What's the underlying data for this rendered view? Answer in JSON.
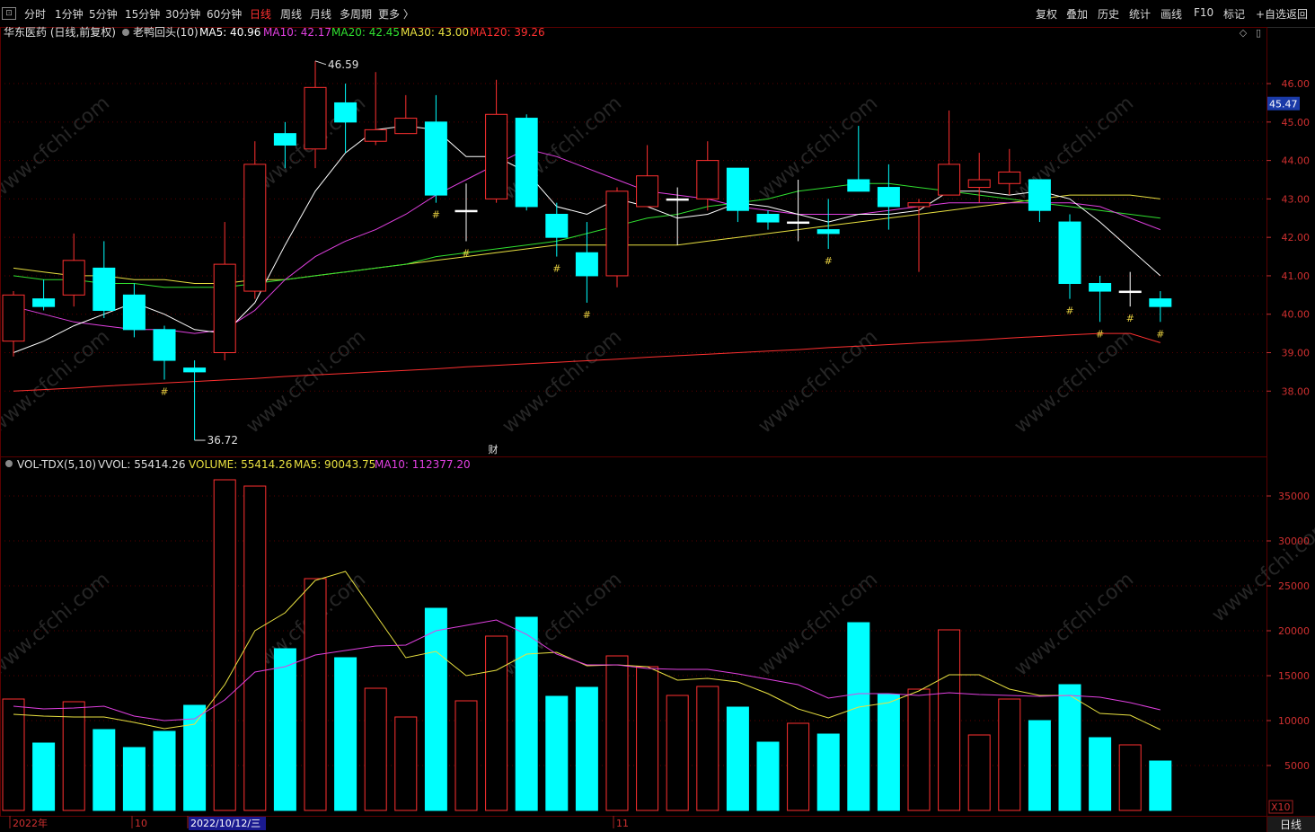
{
  "toolbar": {
    "left": [
      "分时",
      "1分钟",
      "5分钟",
      "15分钟",
      "30分钟",
      "60分钟",
      "日线",
      "周线",
      "月线",
      "多周期",
      "更多 〉"
    ],
    "active": "日线",
    "right": [
      "复权",
      "叠加",
      "历史",
      "统计",
      "画线",
      "F10",
      "标记",
      "+自选",
      "返回"
    ]
  },
  "price_header": {
    "stock": "华东医药 (日线,前复权)",
    "indicator": "老鸭回头(10)",
    "ma": [
      {
        "label": "MA5: 40.96",
        "color": "#ffffff"
      },
      {
        "label": "MA10: 42.17",
        "color": "#e040e0"
      },
      {
        "label": "MA20: 42.45",
        "color": "#30e030"
      },
      {
        "label": "MA30: 43.00",
        "color": "#e8e040"
      },
      {
        "label": "MA120: 39.26",
        "color": "#ff3030"
      }
    ]
  },
  "volume_header": {
    "indicator": "VOL-TDX(5,10)",
    "vvol": "VVOL: 55414.26",
    "volume": {
      "label": "VOLUME: 55414.26",
      "color": "#e8e040"
    },
    "ma5": {
      "label": "MA5: 90043.75",
      "color": "#e8e040"
    },
    "ma10": {
      "label": "MA10: 112377.20",
      "color": "#e040e0"
    }
  },
  "annotations": {
    "high": "46.59",
    "low": "36.72",
    "marker": "#",
    "finance_mark": "财"
  },
  "current_price": "45.47",
  "axis_note": "X10",
  "bottom_axis": [
    "2022年",
    "10",
    "2022/10/12/三",
    "11"
  ],
  "period_label": "日线",
  "watermark": "www.cfchi.com",
  "colors": {
    "up": "#ff3030",
    "down": "#00ffff",
    "grid": "#5a0000",
    "background": "#000000"
  },
  "chart_data": [
    {
      "type": "candlestick",
      "price_ticks": [
        38,
        39,
        40,
        41,
        42,
        43,
        44,
        45,
        46
      ],
      "ylim": [
        36.3,
        47.1
      ],
      "candles": [
        {
          "o": 39.3,
          "c": 40.5,
          "h": 40.6,
          "l": 38.9,
          "v": 12400
        },
        {
          "o": 40.4,
          "c": 40.2,
          "h": 40.9,
          "l": 40.1,
          "v": 7500
        },
        {
          "o": 40.5,
          "c": 41.4,
          "h": 42.1,
          "l": 40.2,
          "v": 12100
        },
        {
          "o": 41.2,
          "c": 40.1,
          "h": 41.9,
          "l": 39.9,
          "v": 9000
        },
        {
          "o": 40.5,
          "c": 39.6,
          "h": 40.8,
          "l": 39.4,
          "v": 7000
        },
        {
          "o": 39.6,
          "c": 38.8,
          "h": 39.7,
          "l": 38.3,
          "v": 8800
        },
        {
          "o": 38.6,
          "c": 38.5,
          "h": 38.8,
          "l": 36.72,
          "v": 11700
        },
        {
          "o": 39.0,
          "c": 41.3,
          "h": 42.4,
          "l": 38.8,
          "v": 36800
        },
        {
          "o": 40.6,
          "c": 43.9,
          "h": 44.5,
          "l": 40.4,
          "v": 36100
        },
        {
          "o": 44.7,
          "c": 44.4,
          "h": 45.0,
          "l": 43.8,
          "v": 18000
        },
        {
          "o": 44.3,
          "c": 45.9,
          "h": 46.59,
          "l": 43.8,
          "v": 25800
        },
        {
          "o": 45.5,
          "c": 45.0,
          "h": 46.0,
          "l": 44.2,
          "v": 17000
        },
        {
          "o": 44.5,
          "c": 44.8,
          "h": 46.3,
          "l": 44.4,
          "v": 13600
        },
        {
          "o": 44.7,
          "c": 45.1,
          "h": 45.7,
          "l": 44.7,
          "v": 10400
        },
        {
          "o": 45.0,
          "c": 43.1,
          "h": 45.7,
          "l": 42.9,
          "v": 22500
        },
        {
          "o": 42.7,
          "c": 42.7,
          "h": 43.4,
          "l": 41.9,
          "v": 12200
        },
        {
          "o": 43.0,
          "c": 45.2,
          "h": 46.1,
          "l": 42.9,
          "v": 19400
        },
        {
          "o": 45.1,
          "c": 42.8,
          "h": 45.2,
          "l": 42.7,
          "v": 21500
        },
        {
          "o": 42.6,
          "c": 42.0,
          "h": 42.9,
          "l": 41.5,
          "v": 12700
        },
        {
          "o": 41.6,
          "c": 41.0,
          "h": 42.4,
          "l": 40.3,
          "v": 13700
        },
        {
          "o": 41.0,
          "c": 43.2,
          "h": 43.3,
          "l": 40.7,
          "v": 17200
        },
        {
          "o": 42.8,
          "c": 43.6,
          "h": 44.4,
          "l": 42.8,
          "v": 16000
        },
        {
          "o": 43.0,
          "c": 43.0,
          "h": 43.3,
          "l": 41.8,
          "v": 12800
        },
        {
          "o": 43.0,
          "c": 44.0,
          "h": 44.5,
          "l": 42.7,
          "v": 13800
        },
        {
          "o": 43.8,
          "c": 42.7,
          "h": 43.8,
          "l": 42.4,
          "v": 11500
        },
        {
          "o": 42.6,
          "c": 42.4,
          "h": 42.7,
          "l": 42.2,
          "v": 7600
        },
        {
          "o": 42.4,
          "c": 42.4,
          "h": 43.5,
          "l": 41.9,
          "v": 9700
        },
        {
          "o": 42.2,
          "c": 42.1,
          "h": 43.0,
          "l": 41.7,
          "v": 8500
        },
        {
          "o": 43.5,
          "c": 43.2,
          "h": 44.9,
          "l": 43.2,
          "v": 20900
        },
        {
          "o": 43.3,
          "c": 42.8,
          "h": 43.9,
          "l": 42.2,
          "v": 12900
        },
        {
          "o": 42.8,
          "c": 42.9,
          "h": 43.0,
          "l": 41.1,
          "v": 13500
        },
        {
          "o": 43.1,
          "c": 43.9,
          "h": 45.3,
          "l": 43.1,
          "v": 20100
        },
        {
          "o": 43.3,
          "c": 43.5,
          "h": 44.2,
          "l": 42.9,
          "v": 8400
        },
        {
          "o": 43.4,
          "c": 43.7,
          "h": 44.3,
          "l": 43.1,
          "v": 12400
        },
        {
          "o": 43.5,
          "c": 42.7,
          "h": 43.5,
          "l": 42.4,
          "v": 10000
        },
        {
          "o": 42.4,
          "c": 40.8,
          "h": 42.6,
          "l": 40.4,
          "v": 14000
        },
        {
          "o": 40.8,
          "c": 40.6,
          "h": 41.0,
          "l": 39.8,
          "v": 8100
        },
        {
          "o": 40.6,
          "c": 40.6,
          "h": 41.1,
          "l": 40.2,
          "v": 7300
        },
        {
          "o": 40.4,
          "c": 40.2,
          "h": 40.6,
          "l": 39.8,
          "v": 5500
        }
      ],
      "marker_bars": [
        5,
        14,
        15,
        18,
        19,
        27,
        35,
        36,
        37,
        38
      ],
      "ma5": [
        39.0,
        39.3,
        39.7,
        40.0,
        40.3,
        40.0,
        39.6,
        39.5,
        40.3,
        41.8,
        43.2,
        44.2,
        44.8,
        44.9,
        44.8,
        44.1,
        44.1,
        43.7,
        42.8,
        42.6,
        43.0,
        42.8,
        42.5,
        42.6,
        42.9,
        42.8,
        42.6,
        42.4,
        42.6,
        42.6,
        42.7,
        43.2,
        43.2,
        43.1,
        43.2,
        43.0,
        42.4,
        41.7,
        41.0
      ],
      "ma10": [
        40.2,
        40.0,
        39.8,
        39.7,
        39.6,
        39.6,
        39.5,
        39.6,
        40.1,
        40.9,
        41.5,
        41.9,
        42.2,
        42.6,
        43.1,
        43.5,
        43.9,
        44.3,
        44.1,
        43.8,
        43.5,
        43.2,
        43.1,
        43.0,
        42.8,
        42.7,
        42.6,
        42.6,
        42.6,
        42.7,
        42.8,
        42.9,
        42.9,
        42.9,
        42.9,
        42.9,
        42.8,
        42.5,
        42.2
      ],
      "ma20": [
        41.0,
        40.9,
        40.9,
        40.8,
        40.8,
        40.7,
        40.7,
        40.7,
        40.8,
        40.9,
        41.0,
        41.1,
        41.2,
        41.3,
        41.5,
        41.6,
        41.7,
        41.8,
        41.9,
        42.1,
        42.3,
        42.5,
        42.6,
        42.8,
        42.9,
        43.0,
        43.2,
        43.3,
        43.4,
        43.4,
        43.3,
        43.2,
        43.1,
        43.0,
        42.9,
        42.8,
        42.7,
        42.6,
        42.5
      ],
      "ma30": [
        41.2,
        41.1,
        41.0,
        41.0,
        40.9,
        40.9,
        40.8,
        40.8,
        40.9,
        40.9,
        41.0,
        41.1,
        41.2,
        41.3,
        41.4,
        41.5,
        41.6,
        41.7,
        41.8,
        41.8,
        41.8,
        41.8,
        41.8,
        41.9,
        42.0,
        42.1,
        42.2,
        42.3,
        42.4,
        42.5,
        42.6,
        42.7,
        42.8,
        42.9,
        43.0,
        43.1,
        43.1,
        43.1,
        43.0
      ],
      "ma120": [
        38.0,
        38.04,
        38.08,
        38.13,
        38.17,
        38.21,
        38.25,
        38.29,
        38.33,
        38.38,
        38.42,
        38.46,
        38.5,
        38.54,
        38.58,
        38.63,
        38.67,
        38.71,
        38.75,
        38.79,
        38.83,
        38.88,
        38.92,
        38.96,
        39.0,
        39.04,
        39.08,
        39.13,
        39.17,
        39.21,
        39.25,
        39.29,
        39.33,
        39.38,
        39.42,
        39.46,
        39.5,
        39.5,
        39.26
      ]
    },
    {
      "type": "bar",
      "volume_ticks": [
        5000,
        10000,
        15000,
        20000,
        25000,
        30000,
        35000
      ],
      "ylim": [
        0,
        37200
      ],
      "vol_ma5": [
        10700,
        10500,
        10400,
        10400,
        9800,
        9100,
        9600,
        14000,
        20000,
        22000,
        25600,
        26600,
        21800,
        17000,
        17700,
        15000,
        15600,
        17400,
        17600,
        16100,
        16200,
        16000,
        14500,
        14700,
        14300,
        13000,
        11300,
        10300,
        11500,
        12000,
        13300,
        15100,
        15100,
        13500,
        12800,
        12800,
        10800,
        10600,
        9000
      ],
      "vol_ma10": [
        11600,
        11300,
        11400,
        11600,
        10500,
        10000,
        10200,
        12300,
        15400,
        16000,
        17300,
        17800,
        18300,
        18400,
        20000,
        20600,
        21200,
        19600,
        17400,
        16200,
        16200,
        15800,
        15700,
        15700,
        15200,
        14600,
        14000,
        12500,
        13000,
        13000,
        12800,
        13100,
        12900,
        12800,
        12700,
        12800,
        12600,
        12000,
        11200
      ]
    }
  ]
}
